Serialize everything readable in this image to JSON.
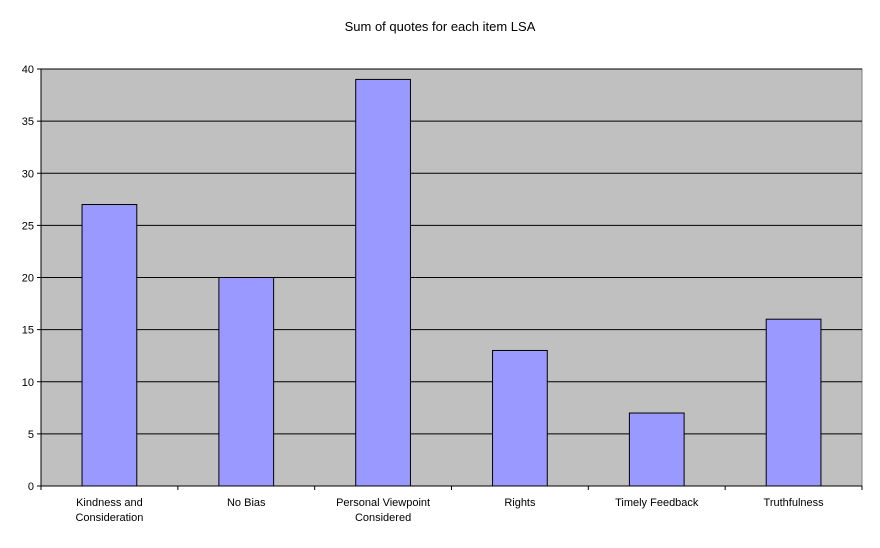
{
  "chart_data": {
    "type": "bar",
    "title": "Sum of quotes for each item LSA",
    "categories": [
      [
        "Kindness and",
        "Consideration"
      ],
      [
        "No Bias"
      ],
      [
        "Personal Viewpoint",
        "Considered"
      ],
      [
        "Rights"
      ],
      [
        "Timely Feedback"
      ],
      [
        "Truthfulness"
      ]
    ],
    "values": [
      27,
      20,
      39,
      13,
      7,
      16
    ],
    "ylim": [
      0,
      40
    ],
    "yticks": [
      0,
      5,
      10,
      15,
      20,
      25,
      30,
      35,
      40
    ],
    "grid": true,
    "legend": "none",
    "colors": {
      "bar_fill": "#9999ff",
      "bar_stroke": "#000000",
      "plot_bg": "#c0c0c0",
      "grid": "#000000"
    }
  }
}
